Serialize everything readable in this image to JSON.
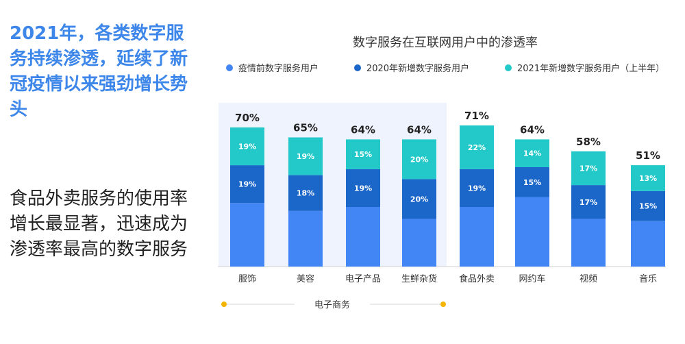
{
  "headline": "2021年，各类数字服务持续渗透，延续了新冠疫情以来强劲增长势头",
  "subtext": "食品外卖服务的使用率增长最显著，迅速成为渗透率最高的数字服务",
  "chart_data": {
    "type": "bar",
    "stacked": true,
    "title": "数字服务在互联网用户中的渗透率",
    "categories": [
      "服饰",
      "美容",
      "电子产品",
      "生鲜杂货",
      "食品外卖",
      "网约车",
      "视频",
      "音乐"
    ],
    "totals": [
      "70%",
      "65%",
      "64%",
      "64%",
      "71%",
      "64%",
      "58%",
      "51%"
    ],
    "series": [
      {
        "name": "疫情前数字服务用户",
        "color": "#4285f4",
        "values": [
          32,
          28,
          30,
          24,
          30,
          35,
          24,
          23
        ]
      },
      {
        "name": "2020年新增数字服务用户",
        "color": "#1a66c9",
        "values": [
          19,
          18,
          19,
          20,
          19,
          15,
          17,
          15
        ],
        "labels": [
          "19%",
          "18%",
          "19%",
          "20%",
          "19%",
          "15%",
          "17%",
          "15%"
        ]
      },
      {
        "name": "2021年新增数字服务用户（上半年）",
        "color": "#23c9c9",
        "values": [
          19,
          19,
          15,
          20,
          22,
          14,
          17,
          13
        ],
        "labels": [
          "19%",
          "19%",
          "15%",
          "20%",
          "22%",
          "14%",
          "17%",
          "13%"
        ]
      }
    ],
    "ylim": [
      0,
      100
    ],
    "legend_position": "top",
    "grid": false,
    "highlight_group": {
      "label": "电子商务",
      "categories": [
        "服饰",
        "美容",
        "电子产品",
        "生鲜杂货"
      ],
      "background": "#eef3fd",
      "marker_color": "#f4b400"
    }
  }
}
